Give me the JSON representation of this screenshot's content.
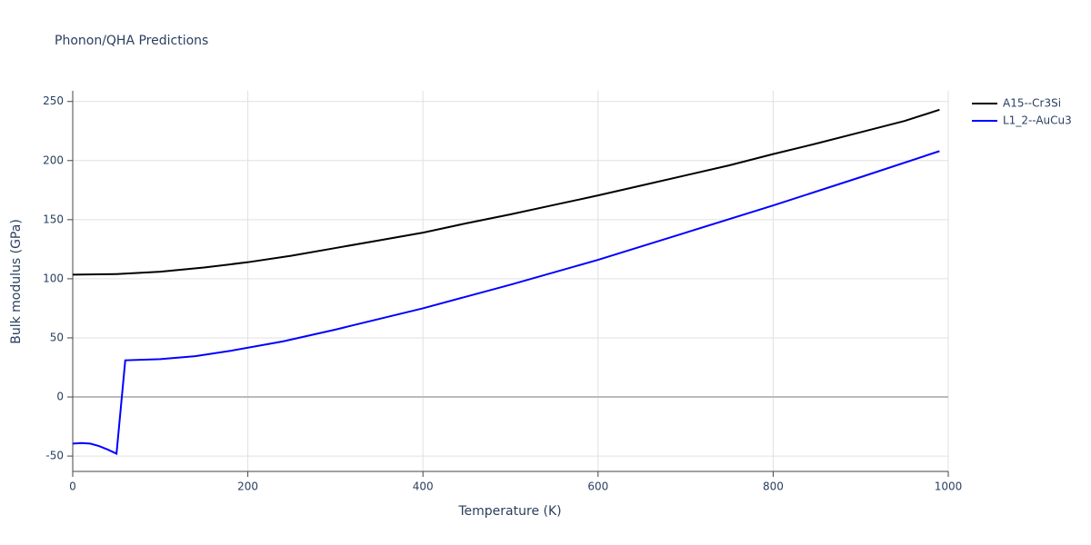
{
  "chart_data": {
    "type": "line",
    "title": "Phonon/QHA Predictions",
    "x_label": "Temperature (K)",
    "y_label": "Bulk modulus (GPa)",
    "xlim": [
      0,
      1000
    ],
    "ylim": [
      -63,
      259
    ],
    "xticks": [
      0,
      200,
      400,
      600,
      800,
      1000
    ],
    "yticks": [
      -50,
      0,
      50,
      100,
      150,
      200,
      250
    ],
    "grid": true,
    "legend": "top-right",
    "series": [
      {
        "name": "A15--Cr3Si",
        "color": "#000000",
        "x": [
          0,
          50,
          100,
          150,
          200,
          250,
          300,
          350,
          400,
          450,
          500,
          550,
          600,
          650,
          700,
          750,
          800,
          850,
          900,
          950,
          990
        ],
        "values": [
          103.5,
          104,
          106,
          109.5,
          114,
          119.5,
          126,
          132.5,
          139,
          147,
          154.5,
          162.5,
          170.5,
          179,
          187.5,
          196,
          205.5,
          214.5,
          224,
          233.5,
          243
        ]
      },
      {
        "name": "L1_2--AuCu3",
        "color": "#0000ff",
        "x": [
          0,
          10,
          20,
          30,
          40,
          50,
          60,
          100,
          140,
          180,
          240,
          300,
          400,
          500,
          600,
          700,
          800,
          900,
          990
        ],
        "values": [
          -39.5,
          -39,
          -39.5,
          -41.5,
          -44.5,
          -48,
          31,
          32,
          34.5,
          39,
          47,
          57,
          75,
          95,
          116,
          139,
          162,
          186,
          208
        ]
      }
    ]
  }
}
